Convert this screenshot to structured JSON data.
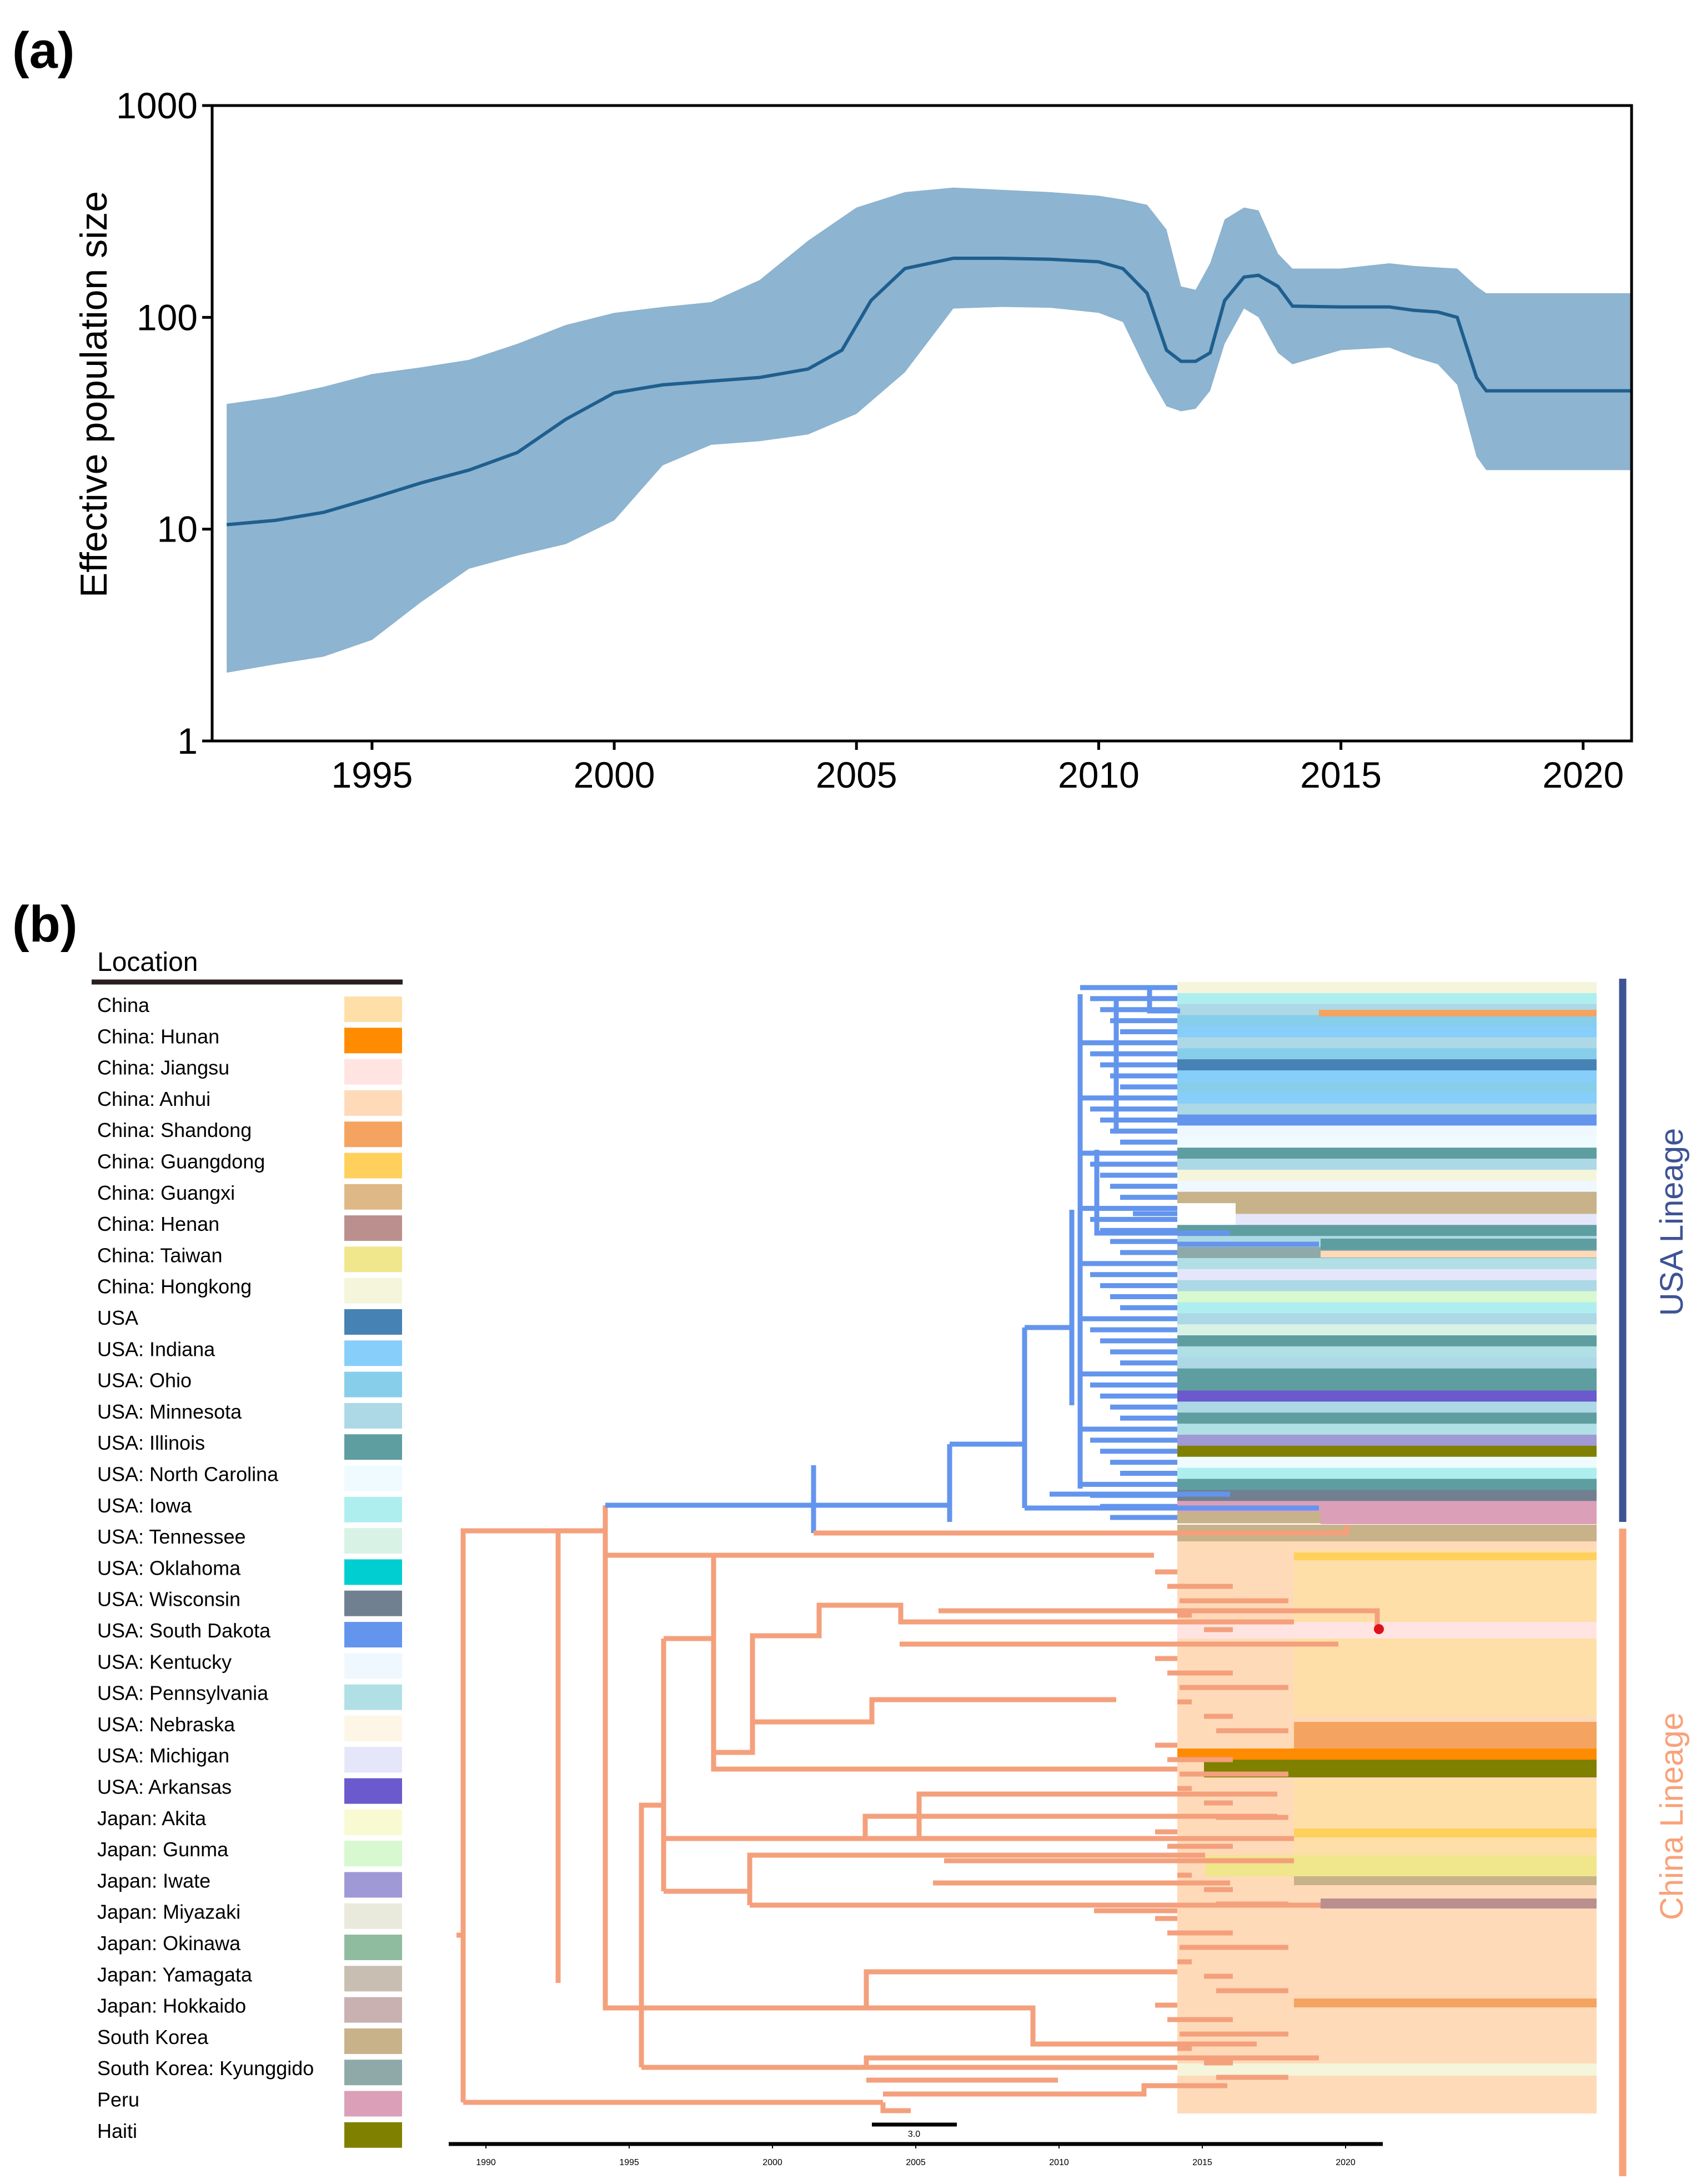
{
  "chart_data": [
    {
      "panel": "(a)",
      "type": "area",
      "title": "",
      "xlabel": "",
      "ylabel": "Effective population size",
      "yscale": "log",
      "ylim": [
        1,
        1000
      ],
      "xlim": [
        1991.7,
        2021
      ],
      "yticks": [
        "1000",
        "100",
        "10",
        "1"
      ],
      "xticks": [
        "1995",
        "2000",
        "2005",
        "2010",
        "2015",
        "2020"
      ],
      "colors": {
        "band": "#8db4d0",
        "median": "#1f5f8f"
      },
      "series": [
        {
          "name": "median",
          "x": [
            1992.0,
            1993.0,
            1994.0,
            1995.0,
            1996.0,
            1997.0,
            1998.0,
            1999.0,
            2000.0,
            2001.0,
            2002.0,
            2003.0,
            2004.0,
            2004.7,
            2005.3,
            2006.0,
            2007.0,
            2008.0,
            2009.0,
            2010.0,
            2010.5,
            2011.0,
            2011.4,
            2011.7,
            2012.0,
            2012.3,
            2012.6,
            2013.0,
            2013.3,
            2013.7,
            2014.0,
            2015.0,
            2016.0,
            2016.5,
            2017.0,
            2017.4,
            2017.8,
            2018.0,
            2019.0,
            2020.0,
            2021.0
          ],
          "y": [
            10.5,
            11,
            12,
            14,
            16.5,
            19,
            23,
            33,
            44,
            48,
            50,
            52,
            57,
            70,
            120,
            170,
            190,
            190,
            188,
            183,
            170,
            130,
            70,
            62,
            62,
            68,
            120,
            155,
            158,
            140,
            113,
            112,
            112,
            108,
            106,
            100,
            52,
            45,
            45,
            45,
            45
          ]
        },
        {
          "name": "lower",
          "x": [
            1992.0,
            1993.0,
            1994.0,
            1995.0,
            1996.0,
            1997.0,
            1998.0,
            1999.0,
            2000.0,
            2001.0,
            2002.0,
            2003.0,
            2004.0,
            2005.0,
            2006.0,
            2007.0,
            2008.0,
            2009.0,
            2010.0,
            2010.5,
            2011.0,
            2011.4,
            2011.7,
            2012.0,
            2012.3,
            2012.6,
            2013.0,
            2013.3,
            2013.7,
            2014.0,
            2015.0,
            2016.0,
            2016.5,
            2017.0,
            2017.4,
            2017.8,
            2018.0,
            2019.0,
            2020.0,
            2021.0
          ],
          "y": [
            2.1,
            2.3,
            2.5,
            3,
            4.5,
            6.5,
            7.5,
            8.5,
            11,
            20,
            25,
            26,
            28,
            35,
            55,
            110,
            112,
            111,
            105,
            95,
            55,
            38,
            36,
            37,
            45,
            75,
            110,
            100,
            68,
            60,
            70,
            72,
            65,
            60,
            48,
            22,
            19,
            19,
            19,
            19
          ]
        },
        {
          "name": "upper",
          "x": [
            1992.0,
            1993.0,
            1994.0,
            1995.0,
            1996.0,
            1997.0,
            1998.0,
            1999.0,
            2000.0,
            2001.0,
            2002.0,
            2003.0,
            2004.0,
            2005.0,
            2006.0,
            2007.0,
            2008.0,
            2009.0,
            2010.0,
            2010.5,
            2011.0,
            2011.4,
            2011.7,
            2012.0,
            2012.3,
            2012.6,
            2013.0,
            2013.3,
            2013.7,
            2014.0,
            2015.0,
            2016.0,
            2016.5,
            2017.0,
            2017.4,
            2017.8,
            2018.0,
            2019.0,
            2020.0,
            2021.0
          ],
          "y": [
            39,
            42,
            47,
            54,
            58,
            63,
            75,
            92,
            105,
            112,
            118,
            150,
            230,
            330,
            390,
            410,
            400,
            390,
            375,
            360,
            340,
            260,
            140,
            135,
            180,
            290,
            330,
            320,
            200,
            170,
            170,
            180,
            175,
            172,
            170,
            140,
            130,
            130,
            130,
            130
          ]
        }
      ]
    },
    {
      "panel": "(b)",
      "type": "tree",
      "legend_title": "Location",
      "legend": [
        {
          "name": "China",
          "color": "#ffdfa8"
        },
        {
          "name": "China: Hunan",
          "color": "#ff8c00"
        },
        {
          "name": "China: Jiangsu",
          "color": "#ffe4e1"
        },
        {
          "name": "China: Anhui",
          "color": "#ffdab9"
        },
        {
          "name": "China: Shandong",
          "color": "#f4a460"
        },
        {
          "name": "China: Guangdong",
          "color": "#ffd15c"
        },
        {
          "name": "China: Guangxi",
          "color": "#deb887"
        },
        {
          "name": "China: Henan",
          "color": "#bc8f8f"
        },
        {
          "name": "China: Taiwan",
          "color": "#f0e68c"
        },
        {
          "name": "China: Hongkong",
          "color": "#f5f5dc"
        },
        {
          "name": "USA",
          "color": "#4682b4"
        },
        {
          "name": "USA: Indiana",
          "color": "#87cefa"
        },
        {
          "name": "USA: Ohio",
          "color": "#87ceeb"
        },
        {
          "name": "USA: Minnesota",
          "color": "#add8e6"
        },
        {
          "name": "USA: Illinois",
          "color": "#5f9ea0"
        },
        {
          "name": "USA: North Carolina",
          "color": "#f0fbff"
        },
        {
          "name": "USA: Iowa",
          "color": "#afeeee"
        },
        {
          "name": "USA: Tennessee",
          "color": "#d8f3e6"
        },
        {
          "name": "USA: Oklahoma",
          "color": "#00ced1"
        },
        {
          "name": "USA: Wisconsin",
          "color": "#708090"
        },
        {
          "name": "USA: South Dakota",
          "color": "#6495ed"
        },
        {
          "name": "USA: Kentucky",
          "color": "#f0f8ff"
        },
        {
          "name": "USA: Pennsylvania",
          "color": "#b0e0e6"
        },
        {
          "name": "USA: Nebraska",
          "color": "#fdf5e6"
        },
        {
          "name": "USA: Michigan",
          "color": "#e6e6fa"
        },
        {
          "name": "USA: Arkansas",
          "color": "#6a5acd"
        },
        {
          "name": "Japan: Akita",
          "color": "#fafad2"
        },
        {
          "name": "Japan: Gunma",
          "color": "#d8f8d0"
        },
        {
          "name": "Japan: Iwate",
          "color": "#9f99d6"
        },
        {
          "name": "Japan: Miyazaki",
          "color": "#e9e9dc"
        },
        {
          "name": "Japan: Okinawa",
          "color": "#8fbc9f"
        },
        {
          "name": "Japan: Yamagata",
          "color": "#c8bfb2"
        },
        {
          "name": "Japan: Hokkaido",
          "color": "#c9b1b1"
        },
        {
          "name": "South Korea",
          "color": "#c8b28a"
        },
        {
          "name": "South Korea: Kyunggido",
          "color": "#8fa9a9"
        },
        {
          "name": "Peru",
          "color": "#db9fb8"
        },
        {
          "name": "Haiti",
          "color": "#808000"
        }
      ],
      "lineages": [
        {
          "name": "USA Lineage",
          "color": "#3e5394",
          "branch_color": "#6495ed"
        },
        {
          "name": "China Lineage",
          "color": "#f9a27a",
          "branch_color": "#f4a07c"
        }
      ],
      "time_axis": {
        "ticks": [
          "1990",
          "1995",
          "2000",
          "2005",
          "2010",
          "2015",
          "2020"
        ]
      },
      "scale_bar": "3.0"
    }
  ]
}
